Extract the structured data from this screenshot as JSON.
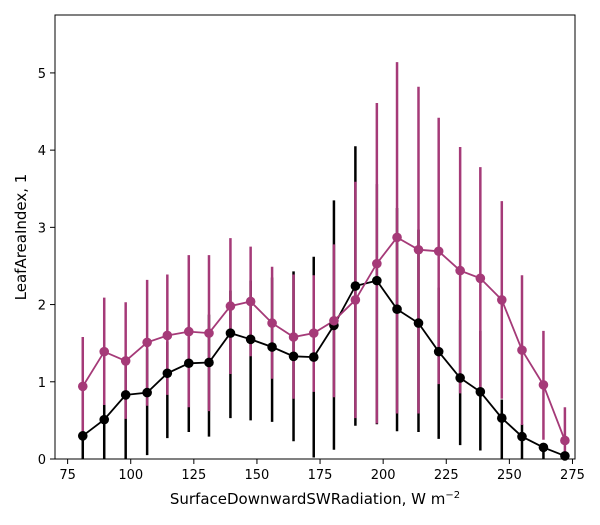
{
  "chart_data": {
    "type": "line",
    "xlabel": "SurfaceDownwardSWRadiation,  W m",
    "xlabel_superscript": "−2",
    "ylabel": "LeafAreaIndex,  1",
    "xlim": [
      70,
      276
    ],
    "ylim": [
      0,
      5.75
    ],
    "xticks": [
      75,
      100,
      125,
      150,
      175,
      200,
      225,
      250,
      275
    ],
    "yticks": [
      0,
      1,
      2,
      3,
      4,
      5
    ],
    "grid": false,
    "x": [
      81,
      89.5,
      98,
      106.5,
      114.5,
      123,
      131,
      139.5,
      147.5,
      156,
      164.5,
      172.5,
      180.5,
      189,
      197.5,
      205.5,
      214,
      222,
      230.5,
      238.5,
      247,
      255,
      263.5,
      272
    ],
    "series": [
      {
        "color": "#000000",
        "values": [
          0.3,
          0.51,
          0.83,
          0.86,
          1.11,
          1.24,
          1.25,
          1.63,
          1.55,
          1.45,
          1.33,
          1.32,
          1.73,
          2.24,
          2.31,
          1.94,
          1.76,
          1.39,
          1.05,
          0.87,
          0.53,
          0.29,
          0.15,
          0.04
        ],
        "err_low": [
          0.0,
          0.0,
          0.0,
          0.05,
          0.27,
          0.35,
          0.29,
          0.53,
          0.5,
          0.48,
          0.23,
          0.02,
          0.12,
          0.43,
          0.45,
          0.36,
          0.35,
          0.26,
          0.18,
          0.11,
          0.0,
          0.0,
          0.0,
          0.0
        ],
        "err_high": [
          0.85,
          0.72,
          1.24,
          1.42,
          1.52,
          1.72,
          1.87,
          2.18,
          2.31,
          2.35,
          2.43,
          2.62,
          3.35,
          4.05,
          3.56,
          3.25,
          2.97,
          2.22,
          1.8,
          1.66,
          0.77,
          0.45,
          0.2,
          0.07
        ]
      },
      {
        "color": "#a53a78",
        "values": [
          0.94,
          1.39,
          1.27,
          1.51,
          1.6,
          1.65,
          1.63,
          1.98,
          2.04,
          1.76,
          1.58,
          1.63,
          1.79,
          2.06,
          2.53,
          2.87,
          2.71,
          2.69,
          2.44,
          2.34,
          2.06,
          1.41,
          0.96,
          0.24
        ],
        "err_low": [
          0.32,
          0.7,
          0.52,
          0.69,
          0.83,
          0.67,
          0.62,
          1.1,
          1.33,
          1.04,
          0.78,
          0.87,
          0.8,
          0.53,
          0.46,
          0.59,
          0.59,
          0.97,
          0.85,
          0.9,
          0.78,
          0.44,
          0.25,
          0.0
        ],
        "err_high": [
          1.58,
          2.09,
          2.03,
          2.32,
          2.39,
          2.64,
          2.64,
          2.86,
          2.75,
          2.49,
          2.39,
          2.38,
          2.78,
          3.59,
          4.61,
          5.14,
          4.82,
          4.42,
          4.04,
          3.78,
          3.34,
          2.38,
          1.66,
          0.67
        ]
      }
    ]
  }
}
